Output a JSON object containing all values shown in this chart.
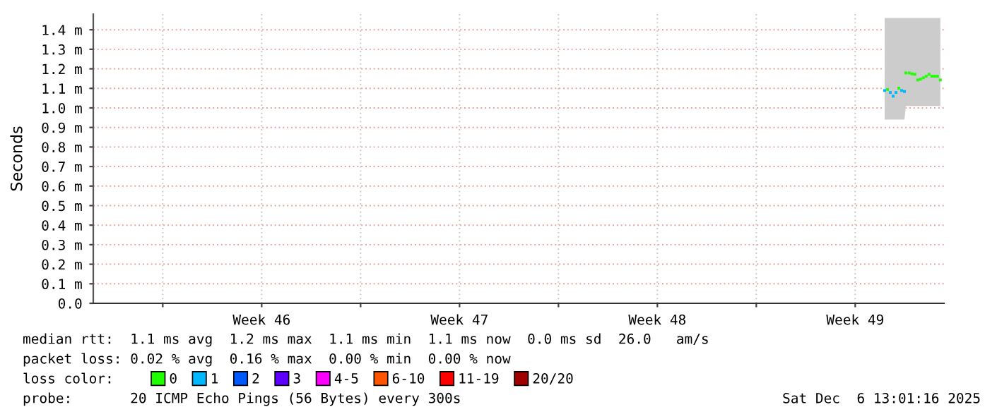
{
  "chart_data": {
    "type": "scatter",
    "ylabel": "Seconds",
    "x": [
      "2025-12-04T13:00",
      "2025-12-04T15:24",
      "2025-12-04T17:48",
      "2025-12-04T20:12",
      "2025-12-04T22:36",
      "2025-12-05T01:00",
      "2025-12-05T03:24",
      "2025-12-05T05:48",
      "2025-12-05T07:00",
      "2025-12-05T09:53",
      "2025-12-05T12:17",
      "2025-12-05T14:41",
      "2025-12-05T17:05",
      "2025-12-05T19:29",
      "2025-12-05T21:53",
      "2025-12-06T00:17",
      "2025-12-06T02:41",
      "2025-12-06T05:05",
      "2025-12-06T07:29",
      "2025-12-06T09:53",
      "2025-12-06T12:17"
    ],
    "series": [
      {
        "name": "0",
        "color": "#20ff00",
        "values": [
          null,
          1.094,
          null,
          null,
          null,
          1.101,
          null,
          null,
          1.179,
          1.179,
          1.174,
          1.172,
          1.143,
          1.147,
          1.154,
          1.162,
          1.172,
          1.162,
          1.162,
          1.162,
          1.143
        ],
        "lower": [
          0.94,
          0.94,
          0.94,
          0.94,
          0.94,
          0.94,
          0.94,
          0.94,
          1.01,
          1.01,
          1.01,
          1.01,
          1.01,
          1.01,
          1.01,
          1.01,
          1.01,
          1.01,
          1.01,
          1.01,
          1.01
        ],
        "upper": [
          1.46,
          1.46,
          1.46,
          1.46,
          1.46,
          1.46,
          1.46,
          1.46,
          1.46,
          1.46,
          1.46,
          1.46,
          1.46,
          1.46,
          1.46,
          1.46,
          1.46,
          1.46,
          1.46,
          1.46,
          1.46
        ]
      },
      {
        "name": "1",
        "color": "#00b8ff",
        "values": [
          1.089,
          null,
          1.079,
          1.06,
          1.079,
          null,
          1.089,
          1.084,
          null,
          null,
          null,
          null,
          null,
          null,
          null,
          null,
          null,
          null,
          null,
          null,
          null
        ]
      },
      {
        "name": "2",
        "color": "#0059ff",
        "values": [
          null,
          null,
          null,
          null,
          null,
          null,
          null,
          null,
          null,
          null,
          null,
          null,
          null,
          null,
          null,
          null,
          null,
          null,
          null,
          null,
          null
        ]
      },
      {
        "name": "3",
        "color": "#5e00ff",
        "values": [
          null,
          null,
          null,
          null,
          null,
          null,
          null,
          null,
          null,
          null,
          null,
          null,
          null,
          null,
          null,
          null,
          null,
          null,
          null,
          null,
          null
        ]
      },
      {
        "name": "4-5",
        "color": "#ff00ff",
        "values": [
          null,
          null,
          null,
          null,
          null,
          null,
          null,
          null,
          null,
          null,
          null,
          null,
          null,
          null,
          null,
          null,
          null,
          null,
          null,
          null,
          null
        ]
      },
      {
        "name": "6-10",
        "color": "#ff5500",
        "values": [
          null,
          null,
          null,
          null,
          null,
          null,
          null,
          null,
          null,
          null,
          null,
          null,
          null,
          null,
          null,
          null,
          null,
          null,
          null,
          null,
          null
        ]
      },
      {
        "name": "11-19",
        "color": "#ff0000",
        "values": [
          null,
          null,
          null,
          null,
          null,
          null,
          null,
          null,
          null,
          null,
          null,
          null,
          null,
          null,
          null,
          null,
          null,
          null,
          null,
          null,
          null
        ]
      },
      {
        "name": "20/20",
        "color": "#a10000",
        "values": [
          null,
          null,
          null,
          null,
          null,
          null,
          null,
          null,
          null,
          null,
          null,
          null,
          null,
          null,
          null,
          null,
          null,
          null,
          null,
          null,
          null
        ]
      }
    ],
    "marker": "square",
    "xlim": [
      "2025-11-06T13:00",
      "2025-12-06T15:24"
    ],
    "xticks": [
      {
        "value": "2025-11-09",
        "label": null
      },
      {
        "value": "2025-11-12T12:00",
        "label": "Week 46"
      },
      {
        "value": "2025-11-16",
        "label": null
      },
      {
        "value": "2025-11-19T12:00",
        "label": "Week 47"
      },
      {
        "value": "2025-11-23",
        "label": null
      },
      {
        "value": "2025-11-26T12:00",
        "label": "Week 48"
      },
      {
        "value": "2025-11-30",
        "label": null
      },
      {
        "value": "2025-12-03T12:00",
        "label": "Week 49"
      }
    ],
    "ylim": [
      0,
      1.48
    ],
    "yticks": [
      {
        "value": 0.0,
        "label": "0.0"
      },
      {
        "value": 0.1,
        "label": "0.1 m"
      },
      {
        "value": 0.2,
        "label": "0.2 m"
      },
      {
        "value": 0.3,
        "label": "0.3 m"
      },
      {
        "value": 0.4,
        "label": "0.4 m"
      },
      {
        "value": 0.5,
        "label": "0.5 m"
      },
      {
        "value": 0.6,
        "label": "0.6 m"
      },
      {
        "value": 0.7,
        "label": "0.7 m"
      },
      {
        "value": 0.8,
        "label": "0.8 m"
      },
      {
        "value": 0.9,
        "label": "0.9 m"
      },
      {
        "value": 1.0,
        "label": "1.0 m"
      },
      {
        "value": 1.1,
        "label": "1.1 m"
      },
      {
        "value": 1.2,
        "label": "1.2 m"
      },
      {
        "value": 1.3,
        "label": "1.3 m"
      },
      {
        "value": 1.4,
        "label": "1.4 m"
      }
    ],
    "grid": true,
    "legend": "bottom",
    "legend_title": "loss color:",
    "annotations": [
      "median rtt:  1.1 ms avg  1.2 ms max  1.1 ms min  1.1 ms now  0.0 ms sd  26.0   am/s",
      "packet loss: 0.02 % avg  0.16 % max  0.00 % min  0.00 % now",
      "probe:       20 ICMP Echo Pings (56 Bytes) every 300s",
      "Sat Dec  6 13:01:16 2025"
    ]
  }
}
